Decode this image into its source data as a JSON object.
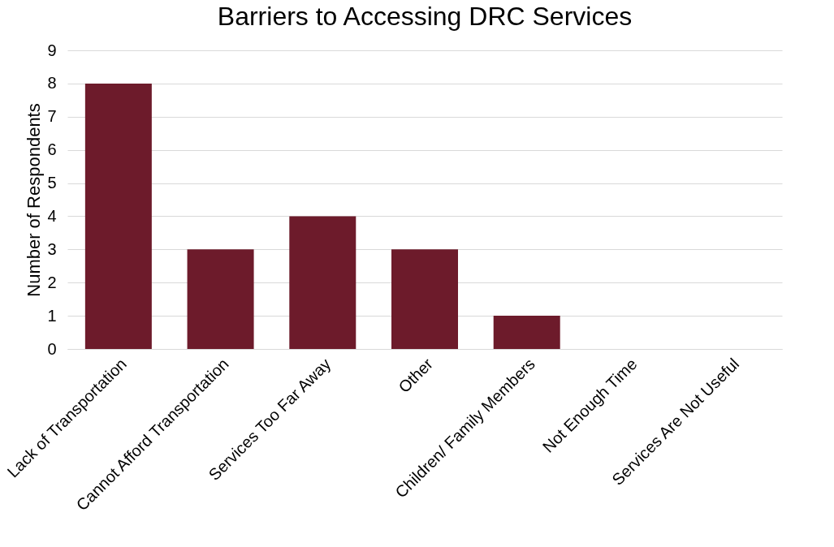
{
  "chart_data": {
    "type": "bar",
    "title": "Barriers to Accessing DRC Services",
    "ylabel": "Number of Respondents",
    "categories": [
      "Lack of Transportation",
      "Cannot Afford Transportation",
      "Services Too Far Away",
      "Other",
      "Children/ Family Members",
      "Not Enough Time",
      "Services Are Not Useful"
    ],
    "values": [
      8,
      3,
      4,
      3,
      1,
      0,
      0
    ],
    "color": "#6d1b2b",
    "ylim": [
      0,
      9
    ],
    "yticks": [
      0,
      1,
      2,
      3,
      4,
      5,
      6,
      7,
      8,
      9
    ],
    "grid": "y"
  }
}
